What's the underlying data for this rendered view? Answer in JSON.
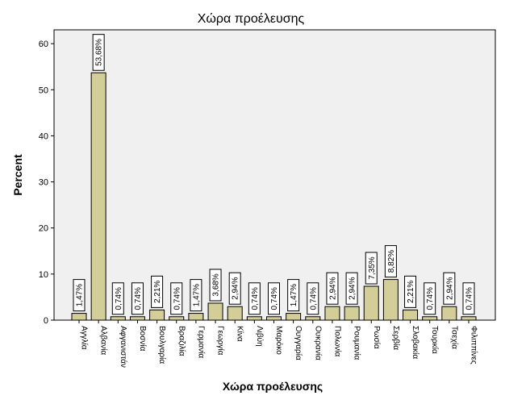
{
  "chart_data": {
    "type": "bar",
    "title": "Χώρα προέλευσης",
    "xlabel": "Χώρα προέλευσης",
    "ylabel": "Percent",
    "ylim": [
      0,
      63
    ],
    "yticks": [
      0,
      10,
      20,
      30,
      40,
      50,
      60
    ],
    "grid": false,
    "categories": [
      "Αγγλία",
      "Αλβανία",
      "Αφγανιστάν",
      "Βοσνία",
      "Βουλγαρία",
      "Βραζιλία",
      "Γερμανία",
      "Γεωργία",
      "Κίνα",
      "Λιβύη",
      "Μαρόκο",
      "Ουγγαρία",
      "Ουκρανία",
      "Πολωνία",
      "Ρουμανία",
      "Ρωσία",
      "Σερβία",
      "Σλοβακία",
      "Τουρκία",
      "Τσεχία",
      "Φιλιππίνες"
    ],
    "values": [
      1.47,
      53.68,
      0.74,
      0.74,
      2.21,
      0.74,
      1.47,
      3.68,
      2.94,
      0.74,
      0.74,
      1.47,
      0.74,
      2.94,
      2.94,
      7.35,
      8.82,
      2.21,
      0.74,
      2.94,
      0.74
    ],
    "value_labels": [
      "1,47%",
      "53,68%",
      "0,74%",
      "0,74%",
      "2,21%",
      "0,74%",
      "1,47%",
      "3,68%",
      "2,94%",
      "0,74%",
      "0,74%",
      "1,47%",
      "0,74%",
      "2,94%",
      "2,94%",
      "7,35%",
      "8,82%",
      "2,21%",
      "0,74%",
      "2,94%",
      "0,74%"
    ],
    "colors": {
      "bar": "#d3ce97",
      "bar_stroke": "#000000",
      "plot_bg": "#f0f0f0",
      "frame": "#000000"
    }
  }
}
